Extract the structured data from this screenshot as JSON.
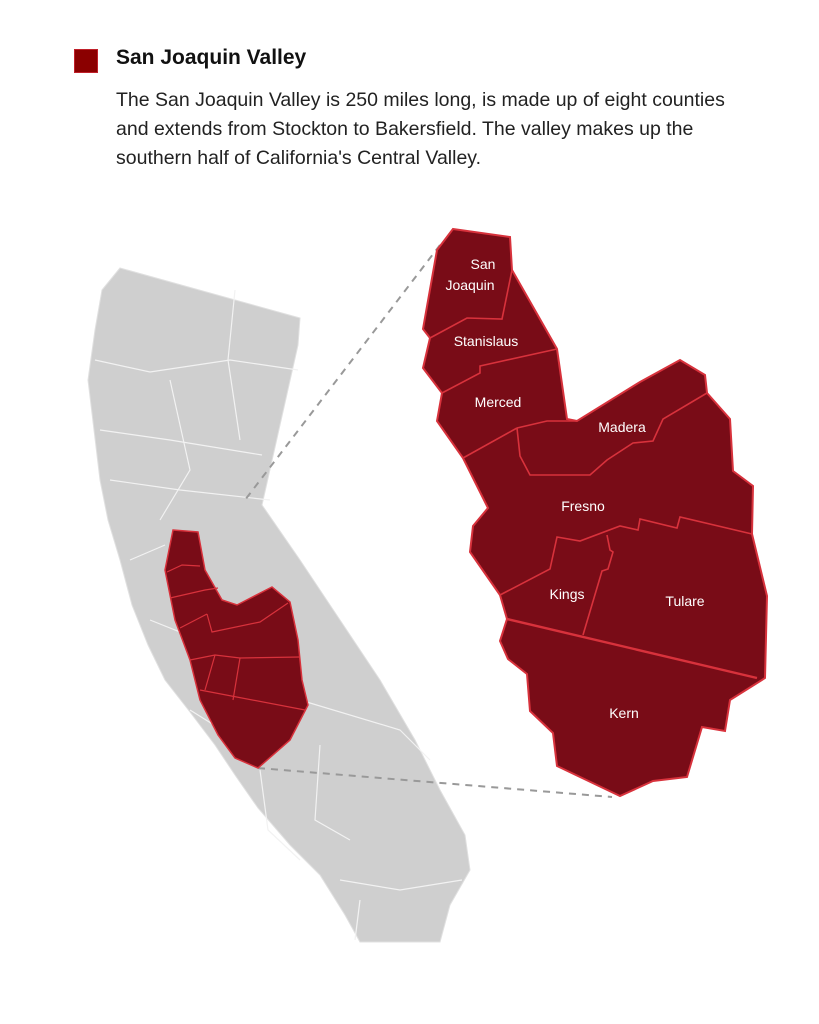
{
  "legend": {
    "label": "San Joaquin Valley",
    "color": "#8b0000"
  },
  "description": "The San Joaquin Valley is 250 miles long, is made up of eight counties and extends from Stockton to Bakersfield. The valley makes up the southern half of California's Central Valley.",
  "colors": {
    "region_fill": "#790c17",
    "region_border": "#d8323c",
    "state_fill": "#cfcfcf",
    "county_line": "#f2f2f2",
    "leader_line": "#999999"
  },
  "counties": [
    {
      "name": "San",
      "name2": "Joaquin"
    },
    {
      "name": "Stanislaus"
    },
    {
      "name": "Merced"
    },
    {
      "name": "Madera"
    },
    {
      "name": "Fresno"
    },
    {
      "name": "Kings"
    },
    {
      "name": "Tulare"
    },
    {
      "name": "Kern"
    }
  ]
}
